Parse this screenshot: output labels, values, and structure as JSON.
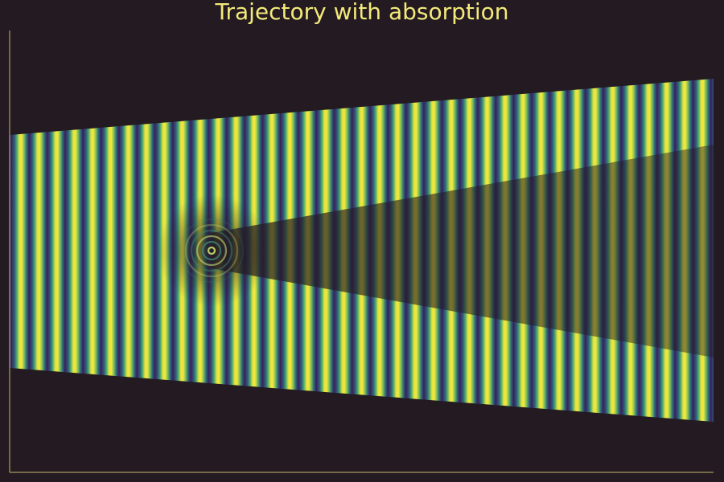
{
  "title": "Trajectory with absorption"
}
